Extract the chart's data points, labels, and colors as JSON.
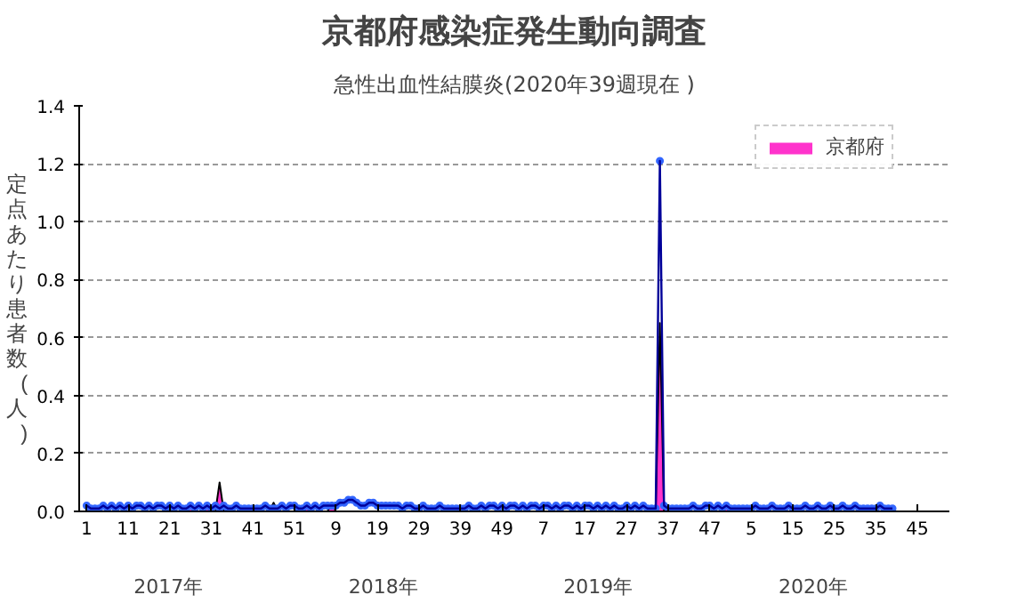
{
  "chart_data": {
    "type": "line",
    "title": "京都府感染症発生動向調査",
    "subtitle": "急性出血性結膜炎(2020年39週現在 )",
    "ylabel": "定点あたり患者数(人)",
    "categories": [
      "1",
      null,
      null,
      null,
      null,
      null,
      null,
      null,
      null,
      null,
      "11",
      null,
      null,
      null,
      null,
      null,
      null,
      null,
      null,
      null,
      "21",
      null,
      null,
      null,
      null,
      null,
      null,
      null,
      null,
      null,
      "31",
      null,
      null,
      null,
      null,
      null,
      null,
      null,
      null,
      null,
      "41",
      null,
      null,
      null,
      null,
      null,
      null,
      null,
      null,
      null,
      "51",
      null,
      null,
      null,
      null,
      null,
      null,
      null,
      null,
      null,
      "9",
      null,
      null,
      null,
      null,
      null,
      null,
      null,
      null,
      null,
      "19",
      null,
      null,
      null,
      null,
      null,
      null,
      null,
      null,
      null,
      "29",
      null,
      null,
      null,
      null,
      null,
      null,
      null,
      null,
      null,
      "39",
      null,
      null,
      null,
      null,
      null,
      null,
      null,
      null,
      null,
      "49",
      null,
      null,
      null,
      null,
      null,
      null,
      null,
      null,
      null,
      "7",
      null,
      null,
      null,
      null,
      null,
      null,
      null,
      null,
      null,
      "17",
      null,
      null,
      null,
      null,
      null,
      null,
      null,
      null,
      null,
      "27",
      null,
      null,
      null,
      null,
      null,
      null,
      null,
      null,
      null,
      "37",
      null,
      null,
      null,
      null,
      null,
      null,
      null,
      null,
      null,
      "47",
      null,
      null,
      null,
      null,
      null,
      null,
      null,
      null,
      null,
      "5",
      null,
      null,
      null,
      null,
      null,
      null,
      null,
      null,
      null,
      "15",
      null,
      null,
      null,
      null,
      null,
      null,
      null,
      null,
      null,
      "25",
      null,
      null,
      null,
      null,
      null,
      null,
      null,
      null,
      null,
      "35",
      null,
      null,
      null,
      null,
      null,
      null,
      null,
      null,
      null,
      "45",
      null,
      null,
      null,
      null,
      null,
      null,
      null
    ],
    "series": [
      {
        "name": "京都府",
        "type": "area",
        "color": "#ff33cc",
        "values": [
          0.03,
          0,
          0,
          0,
          0,
          0,
          0,
          0,
          0,
          0,
          0,
          0,
          0,
          0,
          0,
          0,
          0,
          0,
          0,
          0,
          0,
          0,
          0,
          0,
          0,
          0.03,
          0,
          0,
          0,
          0.03,
          0,
          0,
          0.1,
          0,
          0,
          0,
          0,
          0,
          0,
          0,
          0,
          0,
          0,
          0,
          0,
          0.03,
          0,
          0,
          0,
          0,
          0,
          0,
          0,
          0.03,
          0,
          0,
          0,
          0,
          0,
          0.03,
          0,
          0,
          0,
          0,
          0,
          0,
          0,
          0,
          0,
          0,
          0,
          0,
          0,
          0,
          0,
          0,
          0,
          0,
          0,
          0,
          0,
          0,
          0,
          0,
          0,
          0,
          0,
          0,
          0,
          0,
          0,
          0,
          0,
          0,
          0,
          0,
          0,
          0,
          0,
          0,
          0,
          0,
          0,
          0,
          0,
          0,
          0,
          0,
          0,
          0,
          0,
          0,
          0,
          0,
          0,
          0,
          0,
          0,
          0,
          0,
          0,
          0,
          0,
          0,
          0,
          0,
          0,
          0,
          0,
          0,
          0,
          0,
          0,
          0,
          0,
          0,
          0,
          0,
          0.65,
          0,
          0,
          0,
          0,
          0,
          0,
          0,
          0,
          0,
          0,
          0,
          0,
          0,
          0,
          0,
          0.02,
          0,
          0,
          0,
          0,
          0,
          0,
          0,
          0,
          0,
          0,
          0,
          0,
          0,
          0,
          0,
          0,
          0,
          0,
          0,
          0,
          0,
          0,
          0,
          0,
          0,
          0,
          0,
          0,
          0,
          0,
          0,
          0,
          0,
          0,
          0,
          0,
          0,
          0,
          0,
          0,
          null,
          null,
          null,
          null,
          null,
          null,
          null,
          null,
          null,
          null,
          null,
          null,
          null
        ]
      },
      {
        "color": "#3366ff",
        "marker": "circle",
        "values": [
          0.02,
          0.01,
          0.01,
          0.01,
          0.02,
          0.01,
          0.02,
          0.01,
          0.02,
          0.01,
          0.02,
          0.01,
          0.02,
          0.02,
          0.01,
          0.02,
          0.01,
          0.02,
          0.02,
          0.01,
          0.02,
          0.01,
          0.02,
          0.01,
          0.01,
          0.02,
          0.01,
          0.02,
          0.01,
          0.02,
          0.01,
          0.02,
          0.01,
          0.02,
          0.01,
          0.01,
          0.02,
          0.01,
          0.01,
          0.01,
          0.01,
          0.01,
          0.01,
          0.02,
          0.01,
          0.01,
          0.01,
          0.02,
          0.01,
          0.02,
          0.02,
          0.01,
          0.01,
          0.02,
          0.01,
          0.02,
          0.01,
          0.02,
          0.02,
          0.02,
          0.02,
          0.03,
          0.03,
          0.04,
          0.04,
          0.03,
          0.02,
          0.02,
          0.03,
          0.03,
          0.02,
          0.02,
          0.02,
          0.02,
          0.02,
          0.02,
          0.01,
          0.02,
          0.02,
          0.01,
          0.01,
          0.02,
          0.01,
          0.01,
          0.01,
          0.02,
          0.01,
          0.01,
          0.01,
          0.01,
          0.01,
          0.01,
          0.02,
          0.01,
          0.01,
          0.02,
          0.01,
          0.02,
          0.02,
          0.01,
          0.02,
          0.01,
          0.02,
          0.02,
          0.01,
          0.02,
          0.01,
          0.02,
          0.02,
          0.01,
          0.02,
          0.02,
          0.01,
          0.02,
          0.01,
          0.02,
          0.02,
          0.01,
          0.02,
          0.01,
          0.02,
          0.02,
          0.01,
          0.02,
          0.01,
          0.02,
          0.01,
          0.02,
          0.01,
          0.01,
          0.02,
          0.01,
          0.02,
          0.01,
          0.02,
          0.01,
          0.01,
          0.01,
          1.21,
          0.02,
          0.01,
          0.01,
          0.01,
          0.01,
          0.01,
          0.01,
          0.02,
          0.01,
          0.01,
          0.02,
          0.02,
          0.01,
          0.02,
          0.01,
          0.02,
          0.01,
          0.01,
          0.01,
          0.01,
          0.01,
          0.01,
          0.02,
          0.01,
          0.01,
          0.01,
          0.02,
          0.01,
          0.01,
          0.01,
          0.02,
          0.01,
          0.01,
          0.01,
          0.02,
          0.01,
          0.01,
          0.02,
          0.01,
          0.01,
          0.02,
          0.01,
          0.01,
          0.02,
          0.01,
          0.01,
          0.02,
          0.01,
          0.01,
          0.01,
          0.01,
          0.01,
          0.02,
          0.01,
          0.01,
          0.01,
          null,
          null,
          null,
          null,
          null,
          null,
          null,
          null,
          null,
          null,
          null,
          null,
          null
        ]
      }
    ],
    "ylim": [
      0,
      1.4
    ],
    "yticks": [
      {
        "value": 0,
        "label": "0.0"
      },
      {
        "value": 0.2,
        "label": "0.2"
      },
      {
        "value": 0.4,
        "label": "0.4"
      },
      {
        "value": 0.6,
        "label": "0.6"
      },
      {
        "value": 0.8,
        "label": "0.8"
      },
      {
        "value": 1.0,
        "label": "1.0"
      },
      {
        "value": 1.2,
        "label": "1.2"
      },
      {
        "value": 1.4,
        "label": "1.4"
      }
    ],
    "annotations": [
      "2017年",
      "2018年",
      "2019年",
      "2020年"
    ],
    "grid": "y",
    "legend": "top right"
  }
}
